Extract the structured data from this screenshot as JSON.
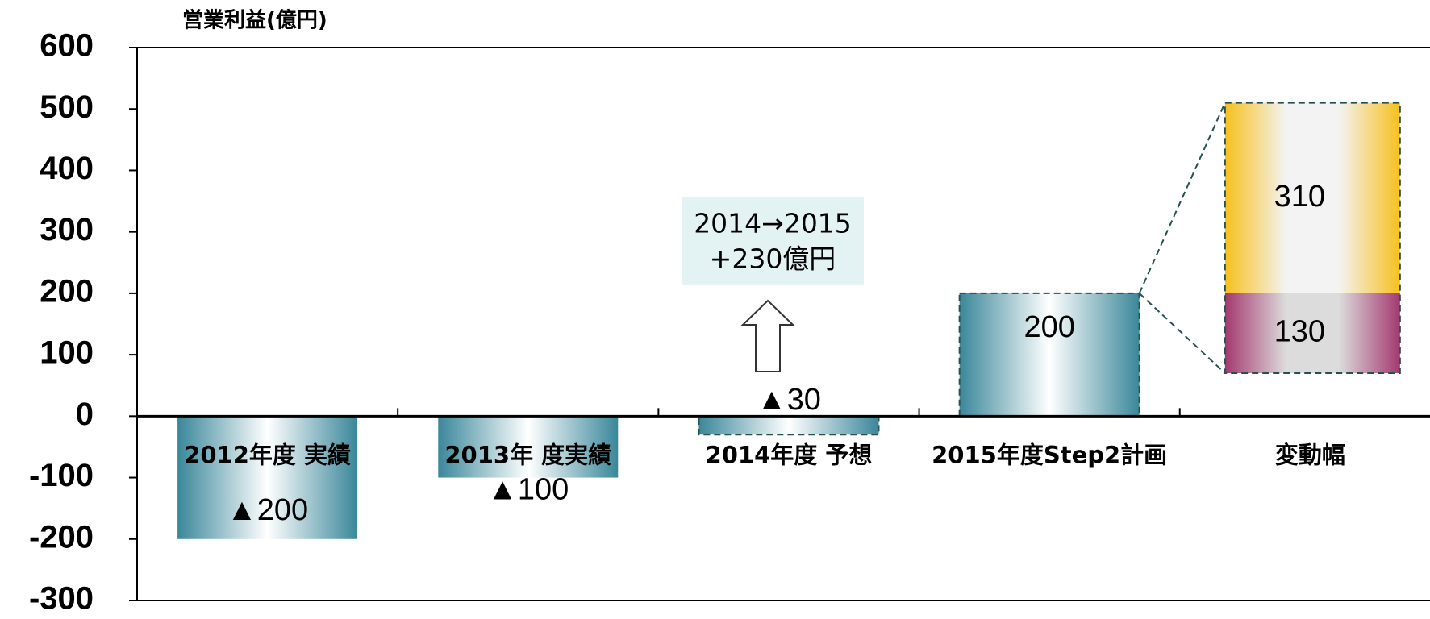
{
  "chart_data": {
    "type": "waterfall",
    "y_axis_label": "営業利益(億円)",
    "categories": [
      "2012年度 実績",
      "2013年 度実績",
      "2014年度 予想",
      "2015年度Step2計画",
      "変動幅"
    ],
    "values": [
      -200,
      -100,
      -30,
      200,
      null
    ],
    "value_labels": [
      "▲200",
      "▲100",
      "▲30",
      "200",
      null
    ],
    "color": "#3a879a",
    "breakdown": {
      "values": [
        130,
        310
      ],
      "colors": [
        "#a3396f",
        "#f7c01e"
      ]
    },
    "annotation": [
      "2014→2015",
      "+230億円"
    ],
    "ylim": [
      -300,
      600
    ],
    "yticks": [
      -300,
      -200,
      -100,
      0,
      100,
      200,
      300,
      400,
      500,
      600
    ]
  }
}
